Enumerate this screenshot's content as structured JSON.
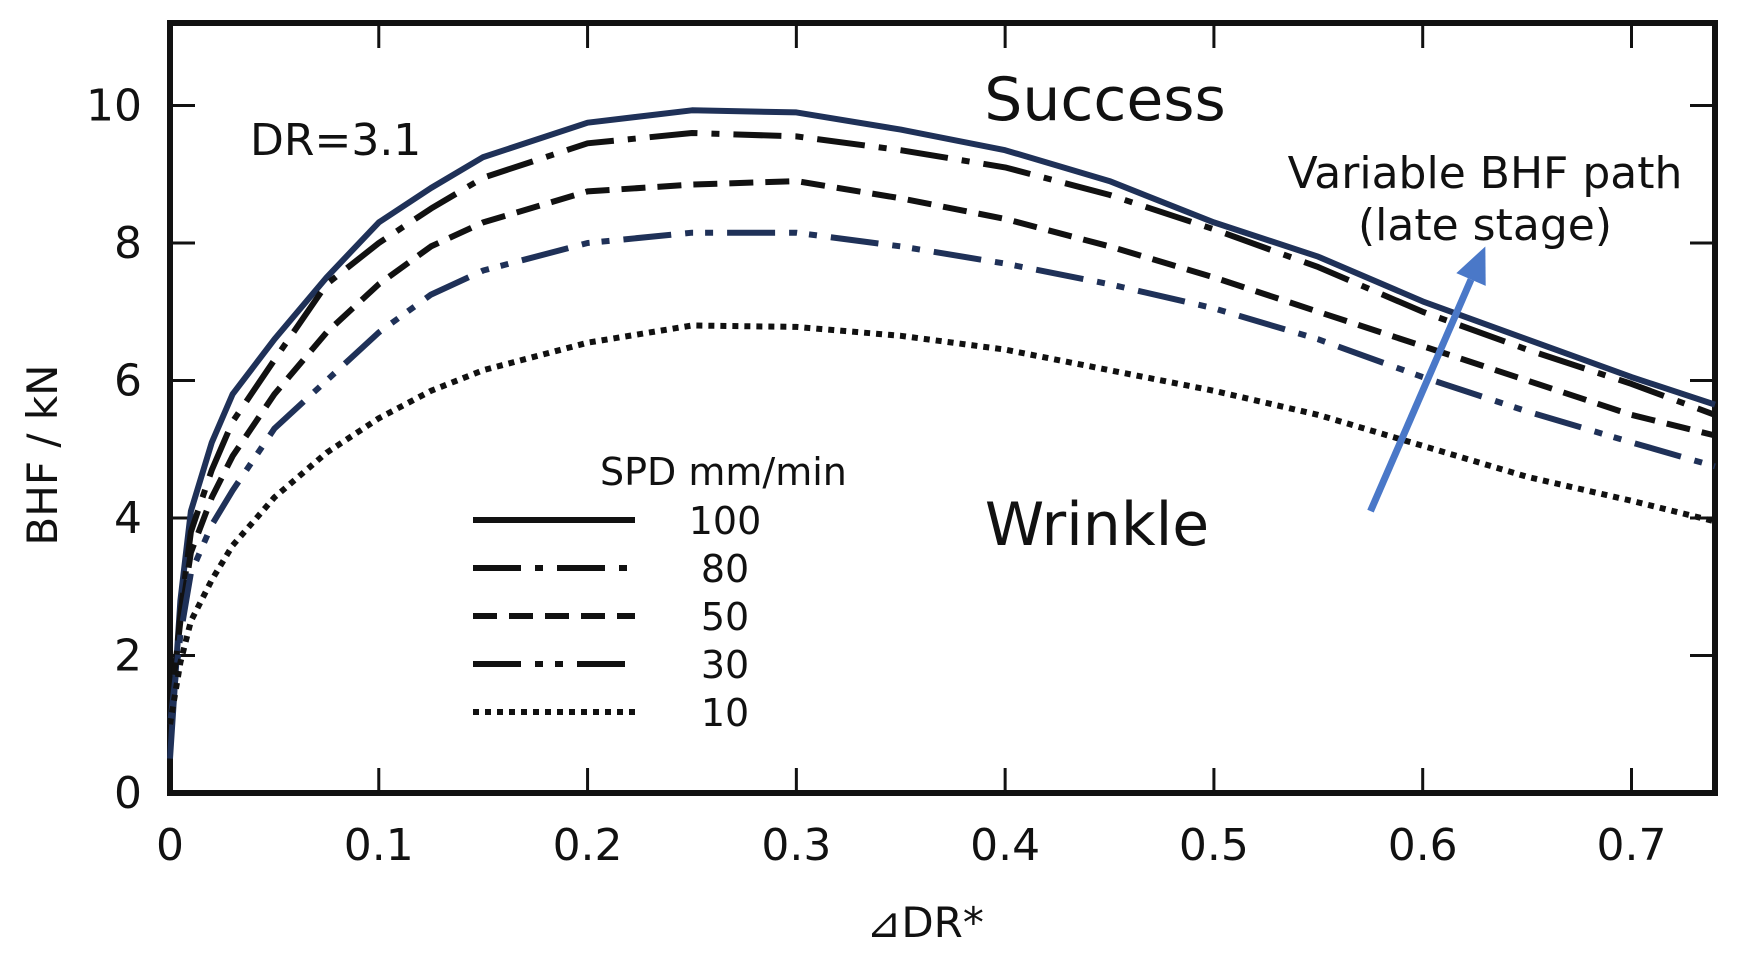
{
  "chart_data": {
    "type": "line",
    "xlabel": "⊿DR*",
    "ylabel": "BHF / kN",
    "xlim": [
      0,
      0.74
    ],
    "ylim": [
      0,
      11.2
    ],
    "xticks": [
      0,
      0.1,
      0.2,
      0.3,
      0.4,
      0.5,
      0.6,
      0.7
    ],
    "xtick_labels": [
      "0",
      "0.1",
      "0.2",
      "0.3",
      "0.4",
      "0.5",
      "0.6",
      "0.7"
    ],
    "yticks": [
      0,
      2,
      4,
      6,
      8,
      10
    ],
    "ytick_labels": [
      "0",
      "2",
      "4",
      "6",
      "8",
      "10"
    ],
    "legend_title": "SPD mm/min",
    "legend_position": "lower-center",
    "series": [
      {
        "name": "100",
        "style": "solid",
        "color": "#1f3158",
        "x": [
          0,
          0.005,
          0.01,
          0.02,
          0.03,
          0.05,
          0.075,
          0.1,
          0.125,
          0.15,
          0.2,
          0.25,
          0.3,
          0.35,
          0.4,
          0.45,
          0.5,
          0.55,
          0.6,
          0.65,
          0.7,
          0.74
        ],
        "y": [
          0.5,
          2.8,
          4.1,
          5.1,
          5.8,
          6.6,
          7.5,
          8.3,
          8.8,
          9.25,
          9.75,
          9.93,
          9.9,
          9.65,
          9.35,
          8.9,
          8.3,
          7.8,
          7.15,
          6.6,
          6.05,
          5.65
        ]
      },
      {
        "name": "80",
        "style": "dash-dot",
        "color": "#111111",
        "x": [
          0,
          0.005,
          0.01,
          0.02,
          0.03,
          0.05,
          0.075,
          0.1,
          0.125,
          0.15,
          0.2,
          0.25,
          0.3,
          0.35,
          0.4,
          0.45,
          0.5,
          0.55,
          0.6,
          0.65,
          0.7,
          0.74
        ],
        "y": [
          1.0,
          2.6,
          3.8,
          4.7,
          5.4,
          6.3,
          7.4,
          8.0,
          8.5,
          8.95,
          9.45,
          9.6,
          9.55,
          9.35,
          9.1,
          8.7,
          8.2,
          7.65,
          7.0,
          6.45,
          5.95,
          5.5
        ]
      },
      {
        "name": "50",
        "style": "dashed",
        "color": "#111111",
        "x": [
          0,
          0.005,
          0.01,
          0.02,
          0.03,
          0.05,
          0.075,
          0.1,
          0.125,
          0.15,
          0.2,
          0.25,
          0.3,
          0.35,
          0.4,
          0.45,
          0.5,
          0.55,
          0.6,
          0.65,
          0.7,
          0.74
        ],
        "y": [
          1.2,
          2.5,
          3.5,
          4.3,
          4.9,
          5.8,
          6.7,
          7.4,
          7.95,
          8.3,
          8.75,
          8.85,
          8.9,
          8.65,
          8.35,
          7.95,
          7.5,
          7.0,
          6.5,
          6.0,
          5.5,
          5.2
        ]
      },
      {
        "name": "30",
        "style": "dash-dot-dot",
        "color": "#1f3158",
        "x": [
          0,
          0.005,
          0.01,
          0.02,
          0.03,
          0.05,
          0.075,
          0.1,
          0.125,
          0.15,
          0.2,
          0.25,
          0.3,
          0.35,
          0.4,
          0.45,
          0.5,
          0.55,
          0.6,
          0.65,
          0.7,
          0.74
        ],
        "y": [
          1.0,
          2.3,
          3.2,
          3.9,
          4.4,
          5.3,
          6.0,
          6.7,
          7.25,
          7.6,
          8.0,
          8.15,
          8.15,
          7.95,
          7.7,
          7.4,
          7.05,
          6.6,
          6.05,
          5.55,
          5.1,
          4.75
        ]
      },
      {
        "name": "10",
        "style": "dotted",
        "color": "#111111",
        "x": [
          0,
          0.005,
          0.01,
          0.02,
          0.03,
          0.05,
          0.075,
          0.1,
          0.125,
          0.15,
          0.2,
          0.25,
          0.3,
          0.35,
          0.4,
          0.45,
          0.5,
          0.55,
          0.6,
          0.65,
          0.7,
          0.74
        ],
        "y": [
          1.0,
          1.9,
          2.5,
          3.1,
          3.6,
          4.3,
          4.95,
          5.45,
          5.85,
          6.15,
          6.55,
          6.8,
          6.78,
          6.65,
          6.45,
          6.15,
          5.85,
          5.5,
          5.05,
          4.6,
          4.25,
          3.95
        ]
      }
    ],
    "annotations": {
      "dr_label": "DR=3.1",
      "success_label": "Success",
      "wrinkle_label": "Wrinkle",
      "path_label_line1": "Variable BHF path",
      "path_label_line2": "(late stage)",
      "arrow_color": "#4a78c8",
      "arrow_from": {
        "x": 0.575,
        "y": 4.1
      },
      "arrow_to": {
        "x": 0.63,
        "y": 7.95
      }
    }
  }
}
